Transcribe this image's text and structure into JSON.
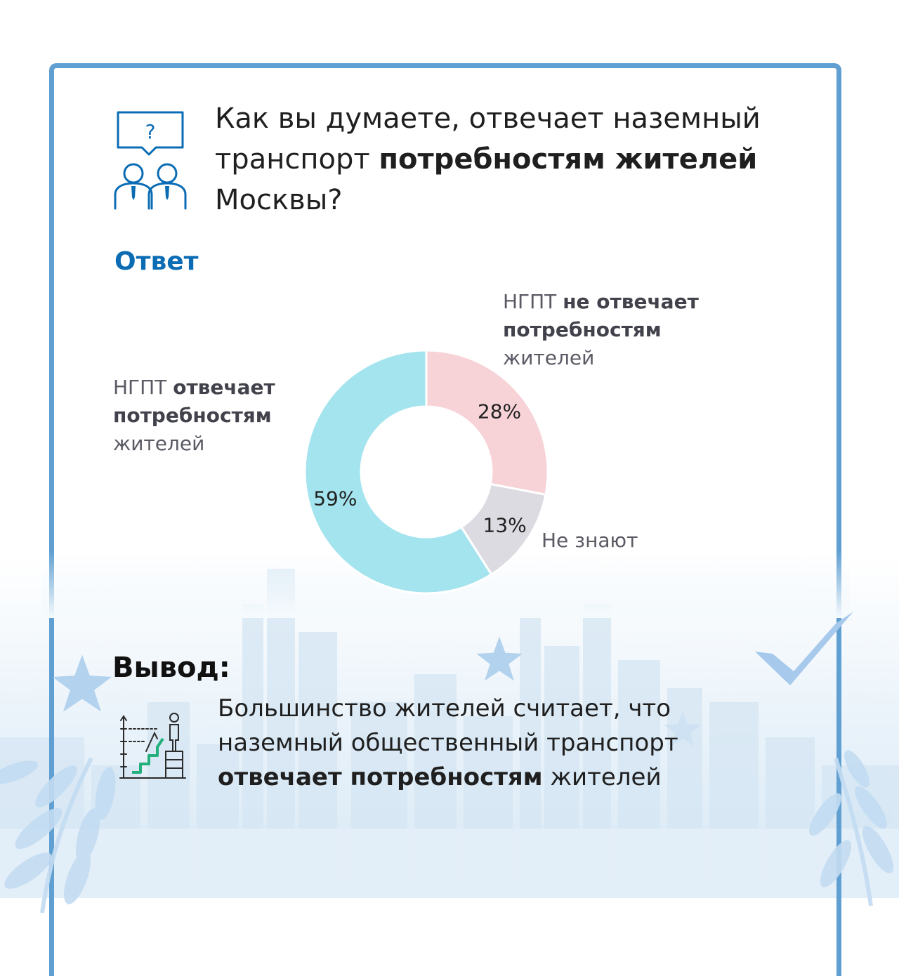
{
  "question": {
    "part1": "Как вы думаете, отвечает наземный транспорт ",
    "bold": "потребностям жителей",
    "part2": " Москвы?"
  },
  "answer_heading": "Ответ",
  "legend": {
    "no": {
      "prefix": "НГПТ ",
      "bold": "не отвечает потребностям",
      "suffix": " жителей"
    },
    "yes": {
      "prefix": "НГПТ ",
      "bold": "отвечает потребностям",
      "suffix": " жителей"
    },
    "unknown": "Не знают"
  },
  "chart_data": {
    "type": "pie",
    "donut": true,
    "slices": [
      {
        "label": "НГПТ не отвечает потребностям жителей",
        "value": 28,
        "display": "28%",
        "color": "#f7d3d8"
      },
      {
        "label": "Не знают",
        "value": 13,
        "display": "13%",
        "color": "#dcdbe2"
      },
      {
        "label": "НГПТ отвечает потребностям жителей",
        "value": 59,
        "display": "59%",
        "color": "#a4e4ee"
      }
    ]
  },
  "conclusion": {
    "heading": "Вывод:",
    "part1": "Большинство жителей считает, что наземный общественный транспорт ",
    "bold": "отвечает потребностям",
    "part2": " жителей"
  },
  "colors": {
    "frame": "#5f9fd1",
    "accent_blue": "#0b6cb4",
    "skyline": "#d5e6f3",
    "star": "#b3d2ee",
    "check": "#a6c9ec",
    "leaf": "#c3dcf2"
  },
  "icons": [
    "people-question-icon",
    "career-ladder-icon",
    "star-icon",
    "checkmark-icon",
    "leaf-branch-icon"
  ]
}
